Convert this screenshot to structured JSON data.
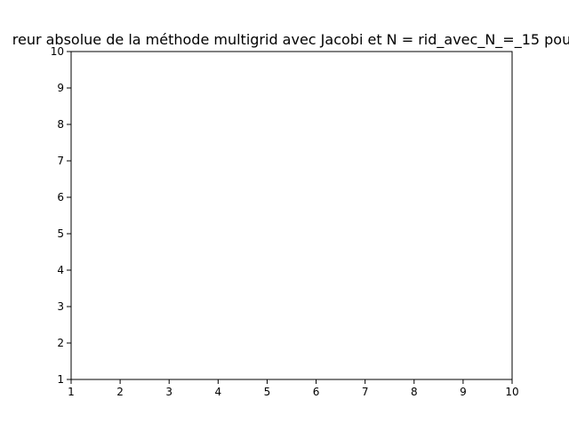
{
  "chart_data": {
    "type": "line",
    "title": "reur absolue de la méthode multigrid avec Jacobi et N = rid_avec_N_=_15 pou",
    "xlabel": "",
    "ylabel": "",
    "xlim": [
      1,
      10
    ],
    "ylim": [
      1,
      10
    ],
    "xticks": [
      "1",
      "2",
      "3",
      "4",
      "5",
      "6",
      "7",
      "8",
      "9",
      "10"
    ],
    "yticks": [
      "1",
      "2",
      "3",
      "4",
      "5",
      "6",
      "7",
      "8",
      "9",
      "10"
    ],
    "grid": false,
    "series": []
  }
}
